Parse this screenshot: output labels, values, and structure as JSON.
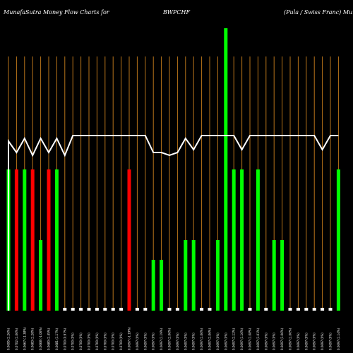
{
  "header": {
    "left": "MunafaSutra  Money Flow  Charts for",
    "center": "BWPCHF",
    "right": "(Pula  / Swiss Franc) MunafaSutra.com"
  },
  "colors": {
    "background": "#000000",
    "up": "#00ff00",
    "down": "#ff0000",
    "neutral": "#ffffff",
    "grid": "#b8741a",
    "line": "#ffffff"
  },
  "chart_data": {
    "type": "bar",
    "description_free": true,
    "ylim": [
      0,
      100
    ],
    "categories": [
      "0.0695 (1.26%)",
      "0.0702 (1.06%)",
      "0.0667 (-1.38%)",
      "0.0683 (1.28%)",
      "0.0668 (-1.06%)",
      "0.0680 (1.45%)",
      "0.0681 (1.17%)",
      "0.0700 (0.97%)",
      "0.0700 (0%)",
      "0.0700 (0%)",
      "0.0700 (0%)",
      "0.0700 (0%)",
      "0.0700 (0%)",
      "0.0700 (0%)",
      "0.0700 (0%)",
      "0.0697 (-1.19%)",
      "0.0697 (0%)",
      "0.0697 (0%)",
      "0.0697 (0%)",
      "0.0697 (1.19%)",
      "0.0697 (1.06%)",
      "0.0697 (0%)",
      "0.0697 (0%)",
      "0.0697 (0%)",
      "0.0697 (1.06%)",
      "0.0697 (1.06%)",
      "0.0697 (0%)",
      "0.0697 (0%)",
      "0.0697 (1.12%)",
      "0.0697 (1.16%)",
      "0.0697 (1.08%)",
      "0.0697 (1.01%)",
      "0.0697 (0%)",
      "0.0697 (0%)",
      "0.0697 (1.06%)",
      "0.0697 (1.06%)",
      "0.0697 (0%)",
      "0.0697 (0%)",
      "0.0697 (0%)",
      "0.0697 (0%)",
      "0.0697 (0%)",
      "0.0697 (1.14%)"
    ],
    "bar_values": [
      50,
      50,
      50,
      50,
      25,
      50,
      50,
      1,
      1,
      1,
      1,
      1,
      1,
      1,
      1,
      50,
      1,
      1,
      18,
      18,
      1,
      1,
      25,
      25,
      1,
      1,
      25,
      100,
      50,
      50,
      1,
      50,
      1,
      25,
      25,
      1,
      1,
      1,
      1,
      1,
      1,
      50
    ],
    "bar_colors": [
      "up",
      "down",
      "up",
      "down",
      "up",
      "down",
      "up",
      "neutral",
      "neutral",
      "neutral",
      "neutral",
      "neutral",
      "neutral",
      "neutral",
      "neutral",
      "down",
      "neutral",
      "neutral",
      "up",
      "up",
      "neutral",
      "neutral",
      "up",
      "up",
      "neutral",
      "neutral",
      "up",
      "up",
      "up",
      "up",
      "neutral",
      "up",
      "neutral",
      "up",
      "up",
      "neutral",
      "neutral",
      "neutral",
      "neutral",
      "neutral",
      "neutral",
      "up"
    ],
    "line_values": [
      60,
      56,
      61,
      55,
      61,
      56,
      61,
      55,
      62,
      62,
      62,
      62,
      62,
      62,
      62,
      62,
      62,
      62,
      56,
      56,
      55,
      56,
      61,
      57,
      62,
      62,
      62,
      62,
      62,
      57,
      62,
      62,
      62,
      62,
      62,
      62,
      62,
      62,
      62,
      57,
      62,
      62
    ]
  }
}
